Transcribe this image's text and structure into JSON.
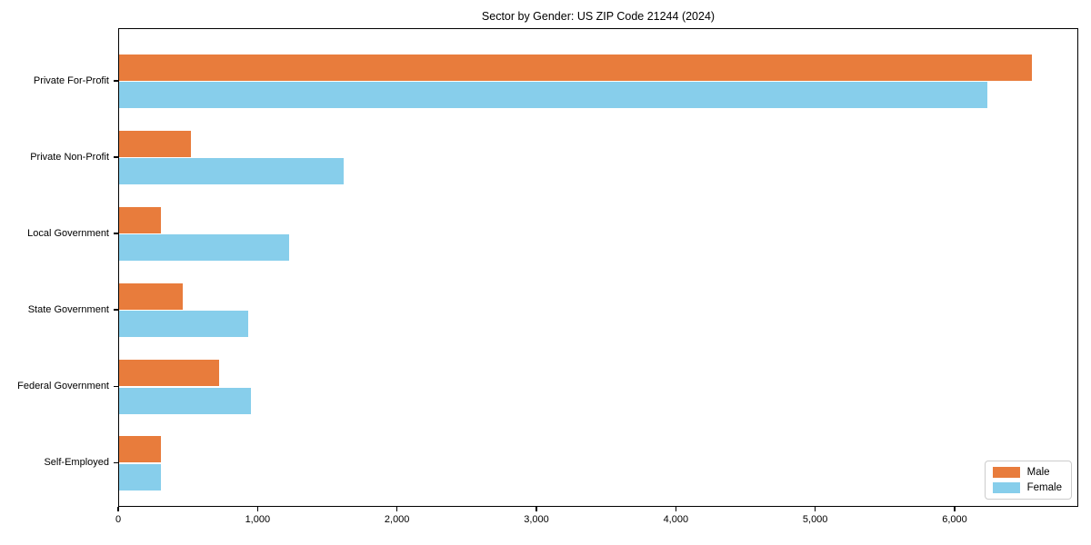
{
  "chart_data": {
    "type": "bar",
    "orientation": "horizontal",
    "title": "Sector by Gender: US ZIP Code 21244 (2024)",
    "categories": [
      "Private For-Profit",
      "Private Non-Profit",
      "Local Government",
      "State Government",
      "Federal Government",
      "Self-Employed"
    ],
    "series": [
      {
        "name": "Male",
        "color": "#e87c3c",
        "values": [
          6550,
          515,
          300,
          455,
          715,
          300
        ]
      },
      {
        "name": "Female",
        "color": "#87ceeb",
        "values": [
          6230,
          1610,
          1220,
          925,
          945,
          300
        ]
      }
    ],
    "xlabel": "",
    "ylabel": "",
    "x_ticks": [
      0,
      1000,
      2000,
      3000,
      4000,
      5000,
      6000
    ],
    "x_tick_labels": [
      "0",
      "1,000",
      "2,000",
      "3,000",
      "4,000",
      "5,000",
      "6,000"
    ],
    "xlim": [
      0,
      6880
    ],
    "grid": false,
    "legend_position": "lower right",
    "axis_color": "#000000",
    "background_color": "#ffffff"
  }
}
